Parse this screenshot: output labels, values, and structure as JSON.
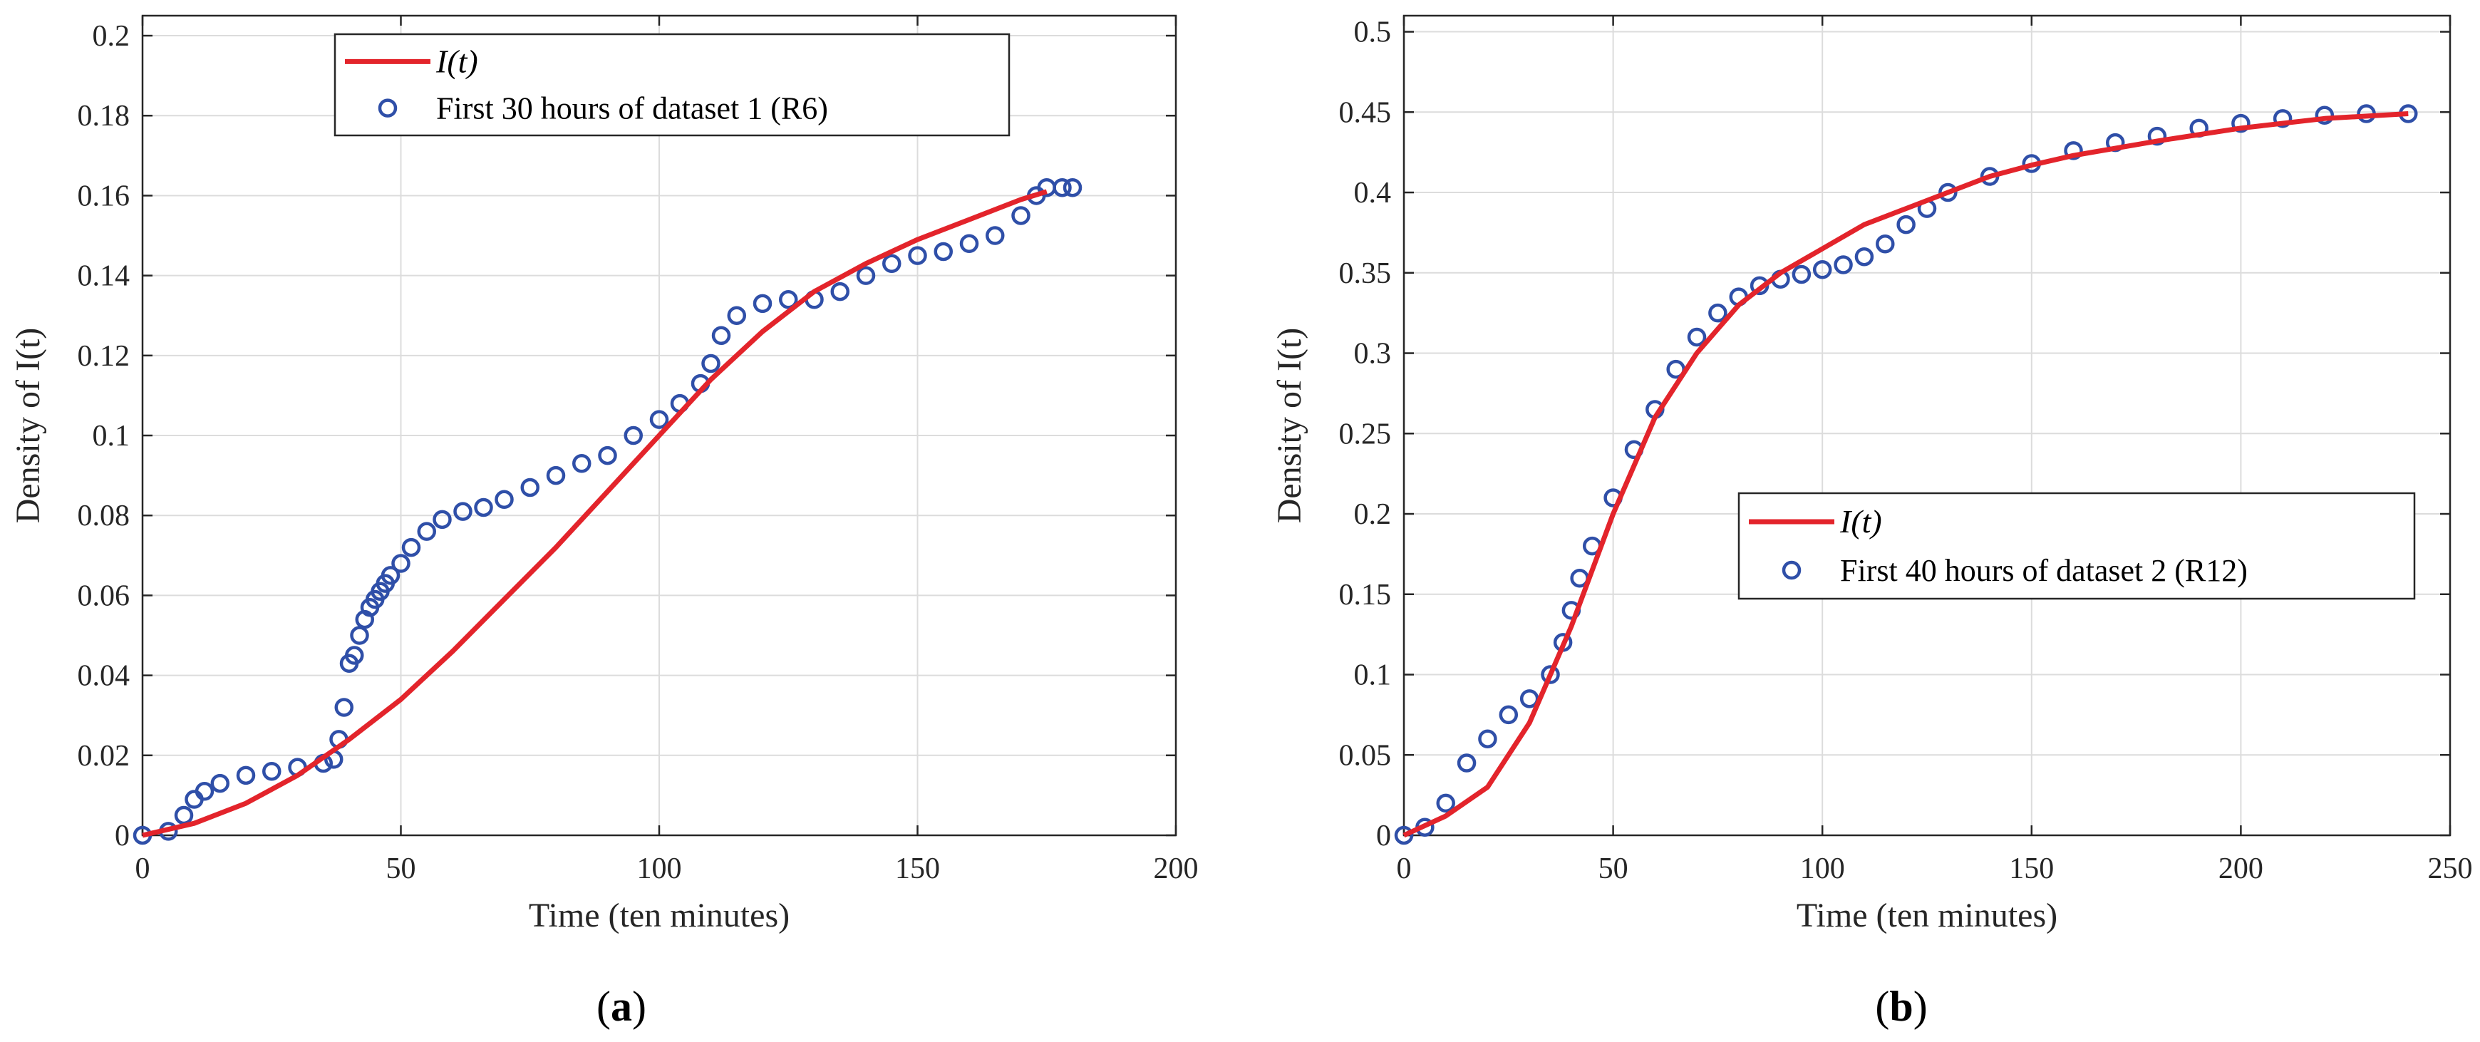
{
  "chart_data": [
    {
      "type": "scatter",
      "panel_label": "(a)",
      "panel_letter": "a",
      "xlabel": "Time (ten minutes)",
      "ylabel": "Density of I(t)",
      "xlim": [
        0,
        200
      ],
      "ylim": [
        0,
        0.205
      ],
      "xticks": [
        0,
        50,
        100,
        150,
        200
      ],
      "yticks": [
        0,
        0.02,
        0.04,
        0.06,
        0.08,
        0.1,
        0.12,
        0.14,
        0.16,
        0.18,
        0.2
      ],
      "xtick_labels": [
        "0",
        "50",
        "100",
        "150",
        "200"
      ],
      "ytick_labels": [
        "0",
        "0.02",
        "0.04",
        "0.06",
        "0.08",
        "0.1",
        "0.12",
        "0.14",
        "0.16",
        "0.18",
        "0.2"
      ],
      "grid": true,
      "legend_position": "top-center",
      "legend": [
        {
          "label": "I(t)",
          "style": "line"
        },
        {
          "label": "First 30 hours of dataset 1 (R6)",
          "style": "circle"
        }
      ],
      "series": [
        {
          "name": "I(t)",
          "kind": "line",
          "x": [
            0,
            10,
            20,
            30,
            40,
            50,
            60,
            70,
            80,
            90,
            100,
            110,
            120,
            130,
            140,
            150,
            160,
            170,
            175
          ],
          "y": [
            0,
            0.003,
            0.008,
            0.015,
            0.024,
            0.034,
            0.046,
            0.059,
            0.072,
            0.086,
            0.1,
            0.114,
            0.126,
            0.136,
            0.143,
            0.149,
            0.154,
            0.159,
            0.161
          ]
        },
        {
          "name": "First 30 hours of dataset 1 (R6)",
          "kind": "scatter",
          "x": [
            0,
            5,
            8,
            10,
            12,
            15,
            20,
            25,
            30,
            35,
            37,
            38,
            39,
            40,
            41,
            42,
            43,
            44,
            45,
            46,
            47,
            48,
            50,
            52,
            55,
            58,
            62,
            66,
            70,
            75,
            80,
            85,
            90,
            95,
            100,
            104,
            108,
            110,
            112,
            115,
            120,
            125,
            130,
            135,
            140,
            145,
            150,
            155,
            160,
            165,
            170,
            173,
            175,
            178,
            180
          ],
          "y": [
            0,
            0.001,
            0.005,
            0.009,
            0.011,
            0.013,
            0.015,
            0.016,
            0.017,
            0.018,
            0.019,
            0.024,
            0.032,
            0.043,
            0.045,
            0.05,
            0.054,
            0.057,
            0.059,
            0.061,
            0.063,
            0.065,
            0.068,
            0.072,
            0.076,
            0.079,
            0.081,
            0.082,
            0.084,
            0.087,
            0.09,
            0.093,
            0.095,
            0.1,
            0.104,
            0.108,
            0.113,
            0.118,
            0.125,
            0.13,
            0.133,
            0.134,
            0.134,
            0.136,
            0.14,
            0.143,
            0.145,
            0.146,
            0.148,
            0.15,
            0.155,
            0.16,
            0.162,
            0.162,
            0.162
          ]
        }
      ]
    },
    {
      "type": "scatter",
      "panel_label": "(b)",
      "panel_letter": "b",
      "xlabel": "Time (ten minutes)",
      "ylabel": "Density of I(t)",
      "xlim": [
        0,
        250
      ],
      "ylim": [
        0,
        0.51
      ],
      "xticks": [
        0,
        50,
        100,
        150,
        200,
        250
      ],
      "yticks": [
        0,
        0.05,
        0.1,
        0.15,
        0.2,
        0.25,
        0.3,
        0.35,
        0.4,
        0.45,
        0.5
      ],
      "xtick_labels": [
        "0",
        "50",
        "100",
        "150",
        "200",
        "250"
      ],
      "ytick_labels": [
        "0",
        "0.05",
        "0.1",
        "0.15",
        "0.2",
        "0.25",
        "0.3",
        "0.35",
        "0.4",
        "0.45",
        "0.5"
      ],
      "grid": true,
      "legend_position": "middle-right",
      "legend": [
        {
          "label": "I(t)",
          "style": "line"
        },
        {
          "label": "First 40 hours of dataset 2 (R12)",
          "style": "circle"
        }
      ],
      "series": [
        {
          "name": "I(t)",
          "kind": "line",
          "x": [
            0,
            10,
            20,
            30,
            40,
            50,
            60,
            70,
            80,
            90,
            100,
            110,
            120,
            130,
            140,
            150,
            160,
            180,
            200,
            220,
            240
          ],
          "y": [
            0,
            0.012,
            0.03,
            0.07,
            0.13,
            0.2,
            0.26,
            0.3,
            0.33,
            0.35,
            0.365,
            0.38,
            0.39,
            0.4,
            0.41,
            0.417,
            0.423,
            0.432,
            0.44,
            0.446,
            0.449
          ]
        },
        {
          "name": "First 40 hours of dataset 2 (R12)",
          "kind": "scatter",
          "x": [
            0,
            5,
            10,
            15,
            20,
            25,
            30,
            35,
            38,
            40,
            42,
            45,
            50,
            55,
            60,
            65,
            70,
            75,
            80,
            85,
            90,
            95,
            100,
            105,
            110,
            115,
            120,
            125,
            130,
            140,
            150,
            160,
            170,
            180,
            190,
            200,
            210,
            220,
            230,
            240
          ],
          "y": [
            0,
            0.005,
            0.02,
            0.045,
            0.06,
            0.075,
            0.085,
            0.1,
            0.12,
            0.14,
            0.16,
            0.18,
            0.21,
            0.24,
            0.265,
            0.29,
            0.31,
            0.325,
            0.335,
            0.342,
            0.346,
            0.349,
            0.352,
            0.355,
            0.36,
            0.368,
            0.38,
            0.39,
            0.4,
            0.41,
            0.418,
            0.426,
            0.431,
            0.435,
            0.44,
            0.443,
            0.446,
            0.448,
            0.449,
            0.449
          ]
        }
      ]
    }
  ]
}
